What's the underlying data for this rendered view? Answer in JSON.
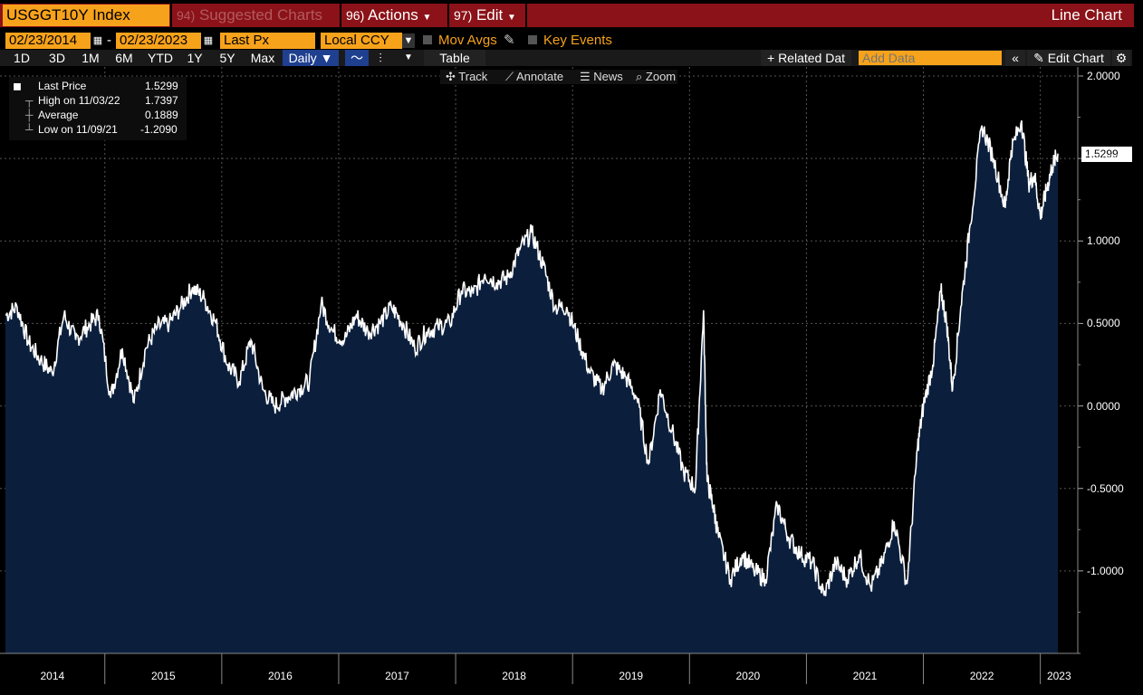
{
  "header": {
    "ticker": "USGGT10Y Index",
    "menu_suggested_num": "94)",
    "menu_suggested": "Suggested Charts",
    "menu_actions_num": "96)",
    "menu_actions": "Actions",
    "menu_edit_num": "97)",
    "menu_edit": "Edit",
    "chart_type": "Line Chart"
  },
  "controls": {
    "start_date": "02/23/2014",
    "dash": "-",
    "end_date": "02/23/2023",
    "field": "Last Px",
    "currency": "Local CCY",
    "mov_avgs": "Mov Avgs",
    "key_events": "Key Events"
  },
  "ranges": [
    "1D",
    "3D",
    "1M",
    "6M",
    "YTD",
    "1Y",
    "5Y",
    "Max"
  ],
  "periodicity": "Daily",
  "table_label": "Table",
  "related_data": "+ Related Dat",
  "add_data_placeholder": "Add Data",
  "edit_chart": "Edit Chart",
  "chart_tools": {
    "track": "Track",
    "annotate": "Annotate",
    "news": "News",
    "zoom": "Zoom"
  },
  "legend": {
    "last_label": "Last Price",
    "last_value": "1.5299",
    "high_label": "High on 11/03/22",
    "high_value": "1.7397",
    "avg_label": "Average",
    "avg_value": "0.1889",
    "low_label": "Low on 11/09/21",
    "low_value": "-1.2090"
  },
  "last_price_tag": "1.5299",
  "colors": {
    "accent": "#f7a21b",
    "header_red": "#8b1218",
    "area_fill": "#0b1f3d",
    "line": "#ffffff"
  },
  "chart_data": {
    "type": "area",
    "title": "USGGT10Y Index",
    "ylim": [
      -1.5,
      2.0
    ],
    "y_ticks": [
      "2.0000",
      "1.5000",
      "1.0000",
      "0.5000",
      "0.0000",
      "-0.5000",
      "-1.0000"
    ],
    "x_labels": [
      "2014",
      "2015",
      "2016",
      "2017",
      "2018",
      "2019",
      "2020",
      "2021",
      "2022",
      "2023"
    ],
    "x": [
      2014.15,
      2014.25,
      2014.35,
      2014.45,
      2014.55,
      2014.65,
      2014.75,
      2014.85,
      2014.95,
      2015.05,
      2015.15,
      2015.25,
      2015.35,
      2015.45,
      2015.55,
      2015.65,
      2015.75,
      2015.85,
      2015.95,
      2016.05,
      2016.15,
      2016.25,
      2016.35,
      2016.45,
      2016.55,
      2016.65,
      2016.75,
      2016.85,
      2016.95,
      2017.05,
      2017.15,
      2017.25,
      2017.35,
      2017.45,
      2017.55,
      2017.65,
      2017.75,
      2017.85,
      2017.95,
      2018.05,
      2018.15,
      2018.25,
      2018.35,
      2018.45,
      2018.55,
      2018.65,
      2018.75,
      2018.85,
      2018.95,
      2019.05,
      2019.15,
      2019.25,
      2019.35,
      2019.45,
      2019.55,
      2019.65,
      2019.75,
      2019.85,
      2019.95,
      2020.05,
      2020.12,
      2020.15,
      2020.2,
      2020.25,
      2020.35,
      2020.45,
      2020.55,
      2020.65,
      2020.75,
      2020.85,
      2020.95,
      2021.05,
      2021.15,
      2021.25,
      2021.35,
      2021.45,
      2021.55,
      2021.65,
      2021.75,
      2021.86,
      2021.95,
      2022.0,
      2022.08,
      2022.15,
      2022.2,
      2022.25,
      2022.32,
      2022.4,
      2022.5,
      2022.6,
      2022.7,
      2022.75,
      2022.84,
      2022.9,
      2022.95,
      2023.0,
      2023.05,
      2023.1,
      2023.15
    ],
    "y": [
      0.55,
      0.6,
      0.38,
      0.28,
      0.2,
      0.55,
      0.4,
      0.48,
      0.55,
      0.05,
      0.35,
      0.02,
      0.35,
      0.48,
      0.5,
      0.6,
      0.72,
      0.65,
      0.5,
      0.25,
      0.15,
      0.4,
      0.1,
      0.0,
      0.05,
      0.1,
      0.15,
      0.62,
      0.45,
      0.4,
      0.55,
      0.45,
      0.5,
      0.6,
      0.5,
      0.35,
      0.45,
      0.48,
      0.5,
      0.7,
      0.68,
      0.8,
      0.75,
      0.78,
      0.95,
      1.05,
      0.85,
      0.6,
      0.6,
      0.4,
      0.2,
      0.1,
      0.25,
      0.18,
      0.05,
      -0.35,
      0.1,
      -0.15,
      -0.4,
      -0.5,
      0.58,
      -0.45,
      -0.6,
      -0.8,
      -1.05,
      -0.9,
      -1.0,
      -1.05,
      -0.6,
      -0.8,
      -0.9,
      -0.95,
      -1.15,
      -0.95,
      -1.05,
      -0.9,
      -1.1,
      -0.95,
      -0.7,
      -1.08,
      -0.25,
      0.0,
      0.25,
      0.7,
      0.5,
      0.1,
      0.6,
      1.1,
      1.7,
      1.5,
      1.2,
      1.55,
      1.73,
      1.35,
      1.4,
      1.15,
      1.3,
      1.45,
      1.53
    ]
  }
}
